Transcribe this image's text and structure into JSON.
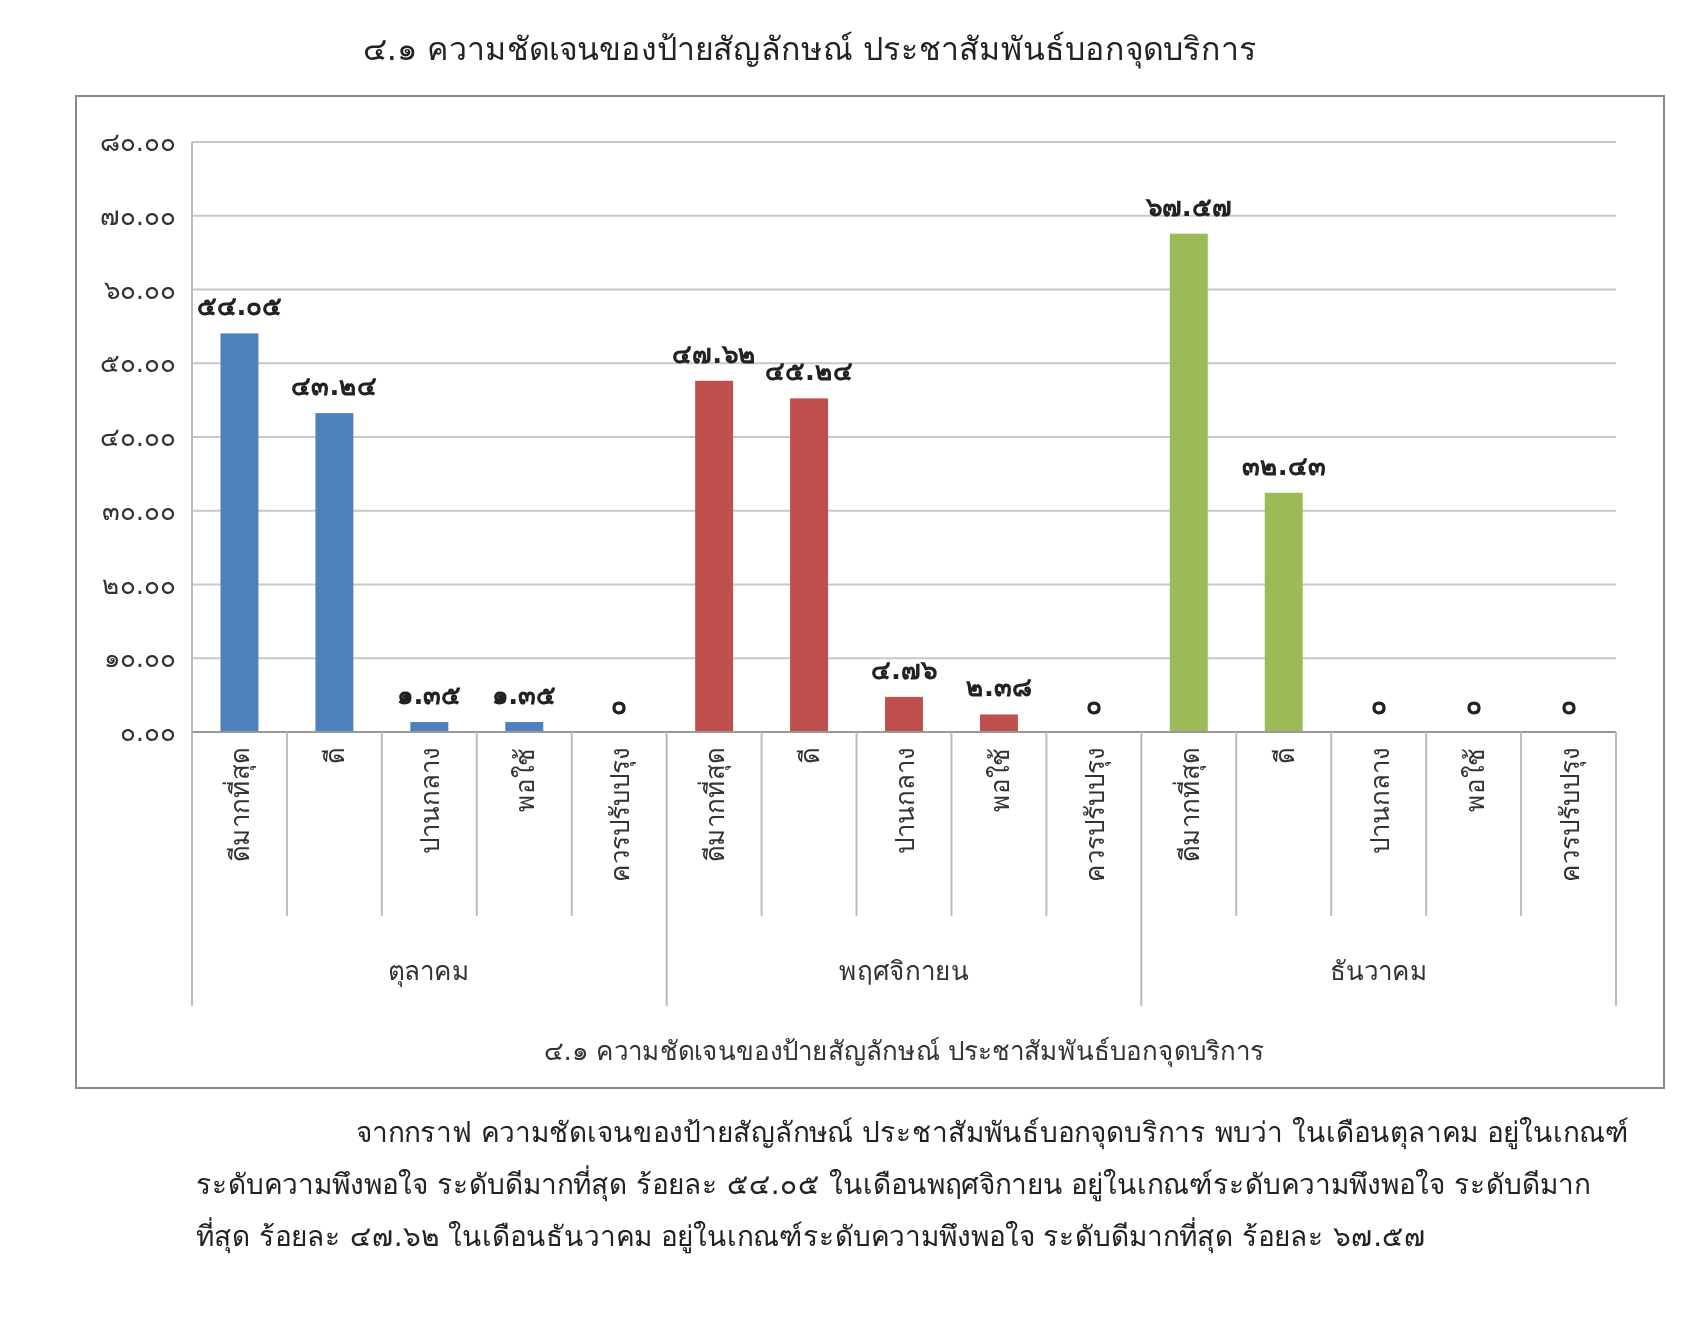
{
  "chart_data": {
    "type": "bar",
    "title": "๔.๑ ความชัดเจนของป้ายสัญลักษณ์ ประชาสัมพันธ์บอกจุดบริการ",
    "categories": [
      "ดีมากที่สุด",
      "ดี",
      "ปานกลาง",
      "พอใช้",
      "ควรปรับปรุง",
      "ดีมากที่สุด",
      "ดี",
      "ปานกลาง",
      "พอใช้",
      "ควรปรับปรุง",
      "ดีมากที่สุด",
      "ดี",
      "ปานกลาง",
      "พอใช้",
      "ควรปรับปรุง"
    ],
    "values": [
      54.05,
      43.24,
      1.35,
      1.35,
      0,
      47.62,
      45.24,
      4.76,
      2.38,
      0,
      67.57,
      32.43,
      0,
      0,
      0
    ],
    "colors": [
      "#4f81bd",
      "#4f81bd",
      "#4f81bd",
      "#4f81bd",
      "#4f81bd",
      "#c0504d",
      "#c0504d",
      "#c0504d",
      "#c0504d",
      "#c0504d",
      "#9bbb59",
      "#9bbb59",
      "#9bbb59",
      "#9bbb59",
      "#9bbb59"
    ],
    "value_labels": [
      "๕๔.๐๕",
      "๔๓.๒๔",
      "๑.๓๕",
      "๑.๓๕",
      "๐",
      "๔๗.๖๒",
      "๔๕.๒๔",
      "๔.๗๖",
      "๒.๓๘",
      "๐",
      "๖๗.๕๗",
      "๓๒.๔๓",
      "๐",
      "๐",
      "๐"
    ],
    "ylim": [
      0,
      80
    ],
    "yticks": [
      {
        "value": 0,
        "label": "๐.๐๐"
      },
      {
        "value": 10,
        "label": "๑๐.๐๐"
      },
      {
        "value": 20,
        "label": "๒๐.๐๐"
      },
      {
        "value": 30,
        "label": "๓๐.๐๐"
      },
      {
        "value": 40,
        "label": "๔๐.๐๐"
      },
      {
        "value": 50,
        "label": "๕๐.๐๐"
      },
      {
        "value": 60,
        "label": "๖๐.๐๐"
      },
      {
        "value": 70,
        "label": "๗๐.๐๐"
      },
      {
        "value": 80,
        "label": "๘๐.๐๐"
      }
    ],
    "grid": "y",
    "annotations": [
      "ตุลาคม",
      "พฤศจิกายน",
      "ธันวาคม",
      "๔.๑ ความชัดเจนของป้ายสัญลักษณ์ ประชาสัมพันธ์บอกจุดบริการ",
      "จากกราฟ ความชัดเจนของป้ายสัญลักษณ์ ประชาสัมพันธ์บอกจุดบริการ พบว่า ในเดือนตุลาคม อยู่ในเกณฑ์ระดับความพึงพอใจ ระดับดีมากที่สุด ร้อยละ ๕๔.๐๕ ในเดือนพฤศจิกายน อยู่ในเกณฑ์ระดับความพึงพอใจ ระดับดีมากที่สุด ร้อยละ ๔๗.๖๒ ในเดือนธันวาคม อยู่ในเกณฑ์ระดับความพึงพอใจ ระดับดีมากที่สุด ร้อยละ ๖๗.๕๗"
    ]
  }
}
